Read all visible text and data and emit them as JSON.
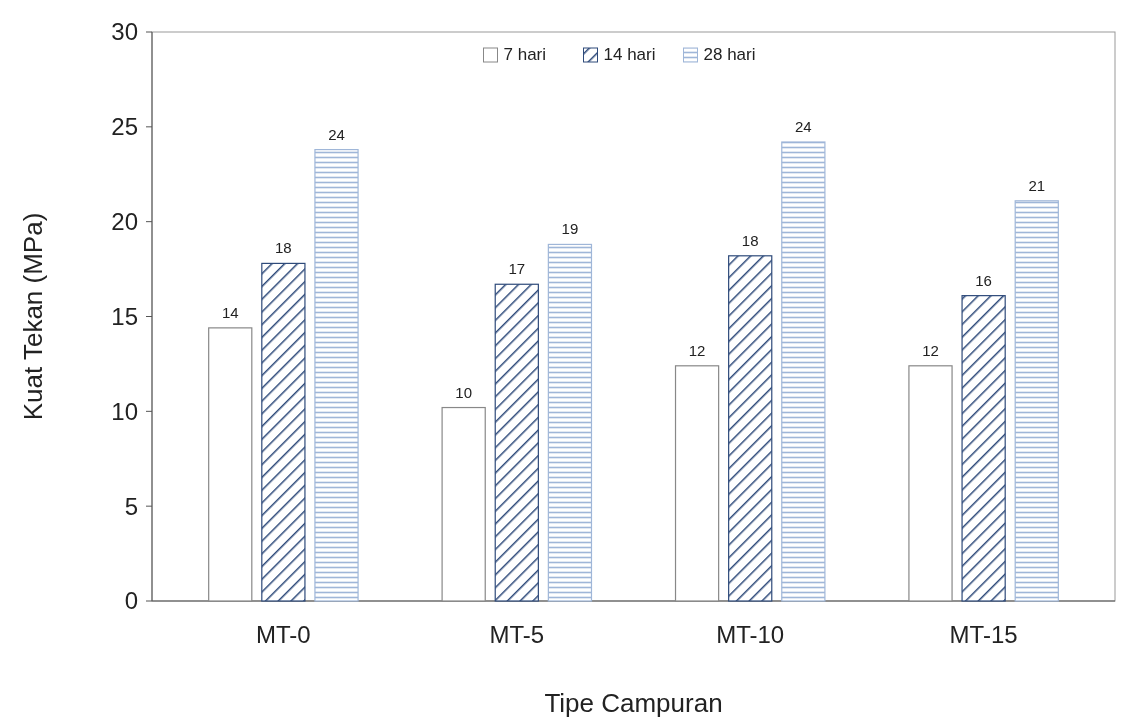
{
  "chart_data": {
    "type": "bar",
    "xlabel": "Tipe Campuran",
    "ylabel": "Kuat Tekan (MPa)",
    "categories": [
      "MT-0",
      "MT-5",
      "MT-10",
      "MT-15"
    ],
    "series": [
      {
        "name": "7 hari",
        "color": "#ffffff",
        "values": [
          14.4,
          10.2,
          12.4,
          12.4
        ],
        "value_labels": [
          "14",
          "10",
          "12",
          "12"
        ]
      },
      {
        "name": "14 hari",
        "color": "#2e4a7a",
        "values": [
          17.8,
          16.7,
          18.2,
          16.1
        ],
        "value_labels": [
          "18",
          "17",
          "18",
          "16"
        ]
      },
      {
        "name": "28 hari",
        "color": "#9fb6d8",
        "values": [
          23.8,
          18.8,
          24.2,
          21.1
        ],
        "value_labels": [
          "24",
          "19",
          "24",
          "21"
        ]
      }
    ],
    "ylim": [
      0,
      30
    ],
    "yticks": [
      0,
      5,
      10,
      15,
      20,
      25,
      30
    ],
    "grid": false,
    "legend": "top"
  }
}
